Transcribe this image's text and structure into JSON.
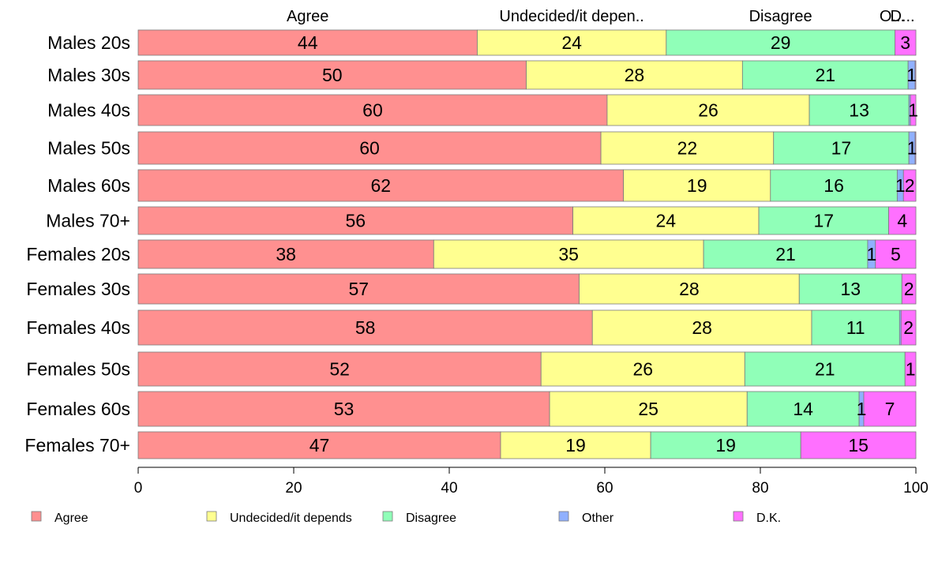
{
  "chart_data": {
    "type": "bar",
    "orientation": "horizontal",
    "stacked": true,
    "categories": [
      "Males 20s",
      "Males 30s",
      "Males 40s",
      "Males 50s",
      "Males 60s",
      "Males 70+",
      "Females 20s",
      "Females 30s",
      "Females 40s",
      "Females 50s",
      "Females 60s",
      "Females 70+"
    ],
    "series": [
      {
        "name": "Agree",
        "color": "#ff9090",
        "values": [
          43.6,
          49.9,
          60.3,
          59.5,
          62.4,
          55.9,
          38.0,
          56.7,
          58.4,
          51.8,
          52.9,
          46.6
        ]
      },
      {
        "name": "Undecided/it depends",
        "color": "#ffff90",
        "values": [
          24.3,
          27.8,
          26.0,
          22.2,
          18.9,
          23.9,
          34.7,
          28.3,
          28.2,
          26.2,
          25.4,
          19.3
        ]
      },
      {
        "name": "Disagree",
        "color": "#90ffb8",
        "values": [
          29.4,
          21.3,
          12.8,
          17.4,
          16.3,
          16.7,
          21.1,
          13.2,
          11.3,
          20.6,
          14.4,
          19.3
        ]
      },
      {
        "name": "Other",
        "color": "#90b0ff",
        "values": [
          0.0,
          0.9,
          0.2,
          0.8,
          0.8,
          0.0,
          1.0,
          0.0,
          0.2,
          0.0,
          0.6,
          0.0
        ]
      },
      {
        "name": "D.K.",
        "color": "#ff70ff",
        "values": [
          2.7,
          0.1,
          0.7,
          0.1,
          1.6,
          3.5,
          5.2,
          1.8,
          1.9,
          1.4,
          6.7,
          14.8
        ]
      }
    ],
    "data_labels": [
      [
        "44",
        "24",
        "29",
        "",
        "3"
      ],
      [
        "50",
        "28",
        "21",
        "1",
        ""
      ],
      [
        "60",
        "26",
        "13",
        "",
        "1"
      ],
      [
        "60",
        "22",
        "17",
        "1",
        ""
      ],
      [
        "62",
        "19",
        "16",
        "1",
        "2"
      ],
      [
        "56",
        "24",
        "17",
        "",
        "4"
      ],
      [
        "38",
        "35",
        "21",
        "1",
        "5"
      ],
      [
        "57",
        "28",
        "13",
        "",
        "2"
      ],
      [
        "58",
        "28",
        "11",
        "",
        "2"
      ],
      [
        "52",
        "26",
        "21",
        "",
        "1"
      ],
      [
        "53",
        "25",
        "14",
        "1",
        "7"
      ],
      [
        "47",
        "19",
        "19",
        "",
        "15"
      ]
    ],
    "top_labels": [
      "Agree",
      "Undecided/it depen..",
      "Disagree",
      "O...",
      "D..."
    ],
    "xlim": [
      0,
      100
    ],
    "xticks": [
      "0",
      "20",
      "40",
      "60",
      "80",
      "100"
    ],
    "xlabel": "",
    "ylabel": "",
    "title": "",
    "grid": false,
    "legend": {
      "position": "bottom",
      "entries": [
        "Agree",
        "Undecided/it depends",
        "Disagree",
        "Other",
        "D.K."
      ]
    }
  }
}
